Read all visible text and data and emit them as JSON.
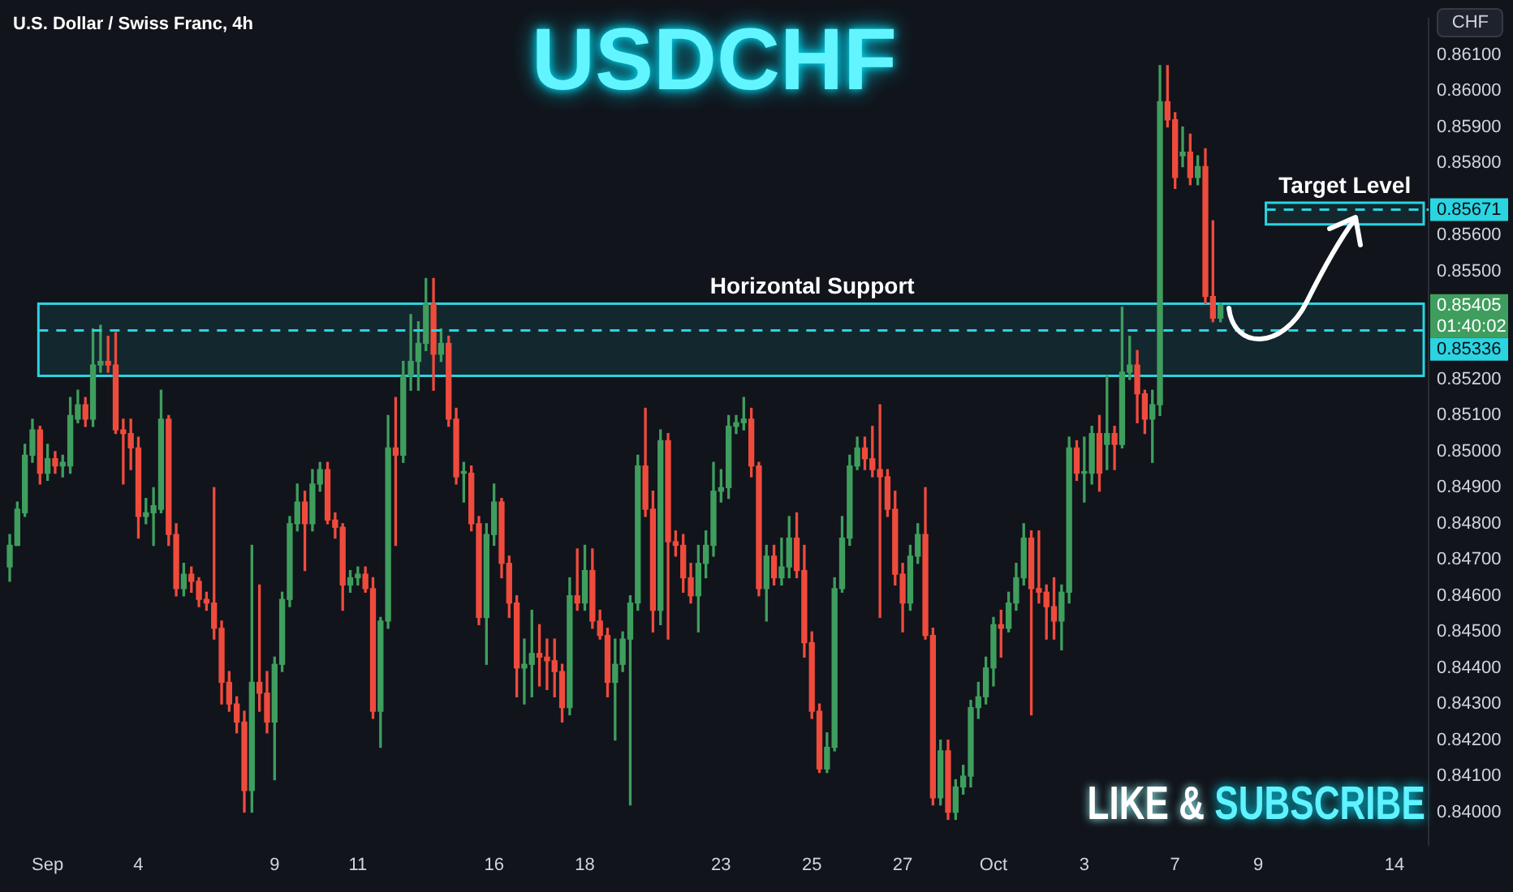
{
  "chart_data": {
    "type": "candlestick",
    "title": "USDCHF",
    "subtitle": "U.S. Dollar / Swiss Franc, 4h",
    "categories": [
      null,
      null,
      null,
      null,
      null,
      "Sep",
      null,
      null,
      null,
      null,
      null,
      null,
      null,
      null,
      null,
      null,
      null,
      "4",
      null,
      null,
      null,
      null,
      null,
      null,
      null,
      null,
      null,
      null,
      null,
      null,
      null,
      null,
      null,
      null,
      null,
      "9",
      null,
      null,
      null,
      null,
      null,
      null,
      null,
      null,
      null,
      null,
      "11",
      null,
      null,
      null,
      null,
      null,
      null,
      null,
      null,
      null,
      null,
      null,
      null,
      null,
      null,
      null,
      null,
      null,
      "16",
      null,
      null,
      null,
      null,
      null,
      null,
      null,
      null,
      null,
      null,
      null,
      "18",
      null,
      null,
      null,
      null,
      null,
      null,
      null,
      null,
      null,
      null,
      null,
      null,
      null,
      null,
      null,
      null,
      null,
      "23",
      null,
      null,
      null,
      null,
      null,
      null,
      null,
      null,
      null,
      null,
      null,
      "25",
      null,
      null,
      null,
      null,
      null,
      null,
      null,
      null,
      null,
      null,
      null,
      "27",
      null,
      null,
      null,
      null,
      null,
      null,
      null,
      null,
      null,
      null,
      null,
      "Oct",
      null,
      null,
      null,
      null,
      null,
      null,
      null,
      null,
      null,
      null,
      null,
      "3",
      null,
      null,
      null,
      null,
      null,
      null,
      null,
      null,
      null,
      null,
      null,
      "7",
      null,
      null,
      null,
      null,
      null,
      null,
      null,
      null,
      null,
      null,
      "9",
      null,
      null,
      null,
      null,
      null,
      null,
      null,
      null,
      null,
      null,
      null,
      null,
      null,
      null,
      null,
      null,
      null,
      "14",
      null,
      null,
      null,
      null
    ],
    "ohlc": [
      [
        0.8468,
        0.8477,
        0.8464,
        0.8474
      ],
      [
        0.8474,
        0.8486,
        0.8474,
        0.8484
      ],
      [
        0.8483,
        0.8502,
        0.8482,
        0.8499
      ],
      [
        0.8499,
        0.8509,
        0.8497,
        0.8506
      ],
      [
        0.8506,
        0.8507,
        0.8491,
        0.8494
      ],
      [
        0.8494,
        0.8502,
        0.8492,
        0.8498
      ],
      [
        0.8498,
        0.85,
        0.8494,
        0.8496
      ],
      [
        0.8496,
        0.8499,
        0.8493,
        0.8497
      ],
      [
        0.8496,
        0.8515,
        0.8494,
        0.851
      ],
      [
        0.8509,
        0.8517,
        0.8508,
        0.8513
      ],
      [
        0.8513,
        0.8515,
        0.8507,
        0.8509
      ],
      [
        0.8509,
        0.8534,
        0.8507,
        0.8524
      ],
      [
        0.8524,
        0.8535,
        0.8522,
        0.8525
      ],
      [
        0.8525,
        0.8532,
        0.8522,
        0.8524
      ],
      [
        0.8524,
        0.8533,
        0.8505,
        0.8506
      ],
      [
        0.8506,
        0.8509,
        0.8491,
        0.8505
      ],
      [
        0.8505,
        0.8509,
        0.8495,
        0.8501
      ],
      [
        0.8501,
        0.8504,
        0.8476,
        0.8482
      ],
      [
        0.8482,
        0.8487,
        0.848,
        0.8483
      ],
      [
        0.8483,
        0.849,
        0.8474,
        0.8485
      ],
      [
        0.8484,
        0.8517,
        0.8483,
        0.8509
      ],
      [
        0.8509,
        0.851,
        0.8474,
        0.8477
      ],
      [
        0.8477,
        0.848,
        0.846,
        0.8462
      ],
      [
        0.8462,
        0.8469,
        0.846,
        0.8466
      ],
      [
        0.8466,
        0.8468,
        0.8461,
        0.8464
      ],
      [
        0.8464,
        0.8465,
        0.8457,
        0.8459
      ],
      [
        0.8459,
        0.8461,
        0.8456,
        0.8458
      ],
      [
        0.8458,
        0.849,
        0.8448,
        0.8451
      ],
      [
        0.8451,
        0.8453,
        0.843,
        0.8436
      ],
      [
        0.8436,
        0.8439,
        0.8428,
        0.843
      ],
      [
        0.843,
        0.8432,
        0.8422,
        0.8425
      ],
      [
        0.8425,
        0.8428,
        0.84,
        0.8406
      ],
      [
        0.8406,
        0.8474,
        0.84,
        0.8436
      ],
      [
        0.8436,
        0.8463,
        0.8428,
        0.8433
      ],
      [
        0.8433,
        0.8439,
        0.8422,
        0.8425
      ],
      [
        0.8425,
        0.8443,
        0.8409,
        0.8441
      ],
      [
        0.8441,
        0.8461,
        0.8439,
        0.8459
      ],
      [
        0.8459,
        0.8482,
        0.8457,
        0.848
      ],
      [
        0.848,
        0.8491,
        0.8478,
        0.8486
      ],
      [
        0.8486,
        0.8489,
        0.8467,
        0.848
      ],
      [
        0.848,
        0.8495,
        0.8478,
        0.8491
      ],
      [
        0.8491,
        0.8497,
        0.8489,
        0.8495
      ],
      [
        0.8495,
        0.8497,
        0.848,
        0.8481
      ],
      [
        0.8481,
        0.8483,
        0.8476,
        0.8479
      ],
      [
        0.8479,
        0.848,
        0.8456,
        0.8463
      ],
      [
        0.8463,
        0.8467,
        0.8461,
        0.8465
      ],
      [
        0.8465,
        0.8468,
        0.8463,
        0.8466
      ],
      [
        0.8466,
        0.8468,
        0.8461,
        0.8462
      ],
      [
        0.8462,
        0.8465,
        0.8426,
        0.8428
      ],
      [
        0.8428,
        0.8454,
        0.8418,
        0.8453
      ],
      [
        0.8453,
        0.851,
        0.8451,
        0.8501
      ],
      [
        0.8501,
        0.8515,
        0.8474,
        0.8499
      ],
      [
        0.8499,
        0.8525,
        0.8497,
        0.8521
      ],
      [
        0.8521,
        0.8538,
        0.8517,
        0.8525
      ],
      [
        0.8525,
        0.8536,
        0.8517,
        0.853
      ],
      [
        0.853,
        0.8548,
        0.8528,
        0.8541
      ],
      [
        0.8541,
        0.8548,
        0.8517,
        0.8527
      ],
      [
        0.8527,
        0.8534,
        0.8525,
        0.853
      ],
      [
        0.853,
        0.8532,
        0.8507,
        0.8509
      ],
      [
        0.8509,
        0.8512,
        0.8491,
        0.8493
      ],
      [
        0.8494,
        0.8497,
        0.8486,
        0.8494
      ],
      [
        0.8494,
        0.8496,
        0.8478,
        0.848
      ],
      [
        0.848,
        0.8482,
        0.8452,
        0.8454
      ],
      [
        0.8454,
        0.848,
        0.8441,
        0.8477
      ],
      [
        0.8477,
        0.8491,
        0.8474,
        0.8486
      ],
      [
        0.8486,
        0.8487,
        0.8465,
        0.8469
      ],
      [
        0.8469,
        0.8471,
        0.8454,
        0.8458
      ],
      [
        0.8458,
        0.846,
        0.8432,
        0.844
      ],
      [
        0.844,
        0.8448,
        0.843,
        0.8441
      ],
      [
        0.8441,
        0.8456,
        0.8432,
        0.8444
      ],
      [
        0.8444,
        0.8452,
        0.8435,
        0.8443
      ],
      [
        0.8443,
        0.8448,
        0.8434,
        0.8442
      ],
      [
        0.8442,
        0.8448,
        0.8432,
        0.8439
      ],
      [
        0.8439,
        0.8441,
        0.8425,
        0.8429
      ],
      [
        0.8429,
        0.8465,
        0.8427,
        0.846
      ],
      [
        0.846,
        0.8473,
        0.8456,
        0.8458
      ],
      [
        0.8458,
        0.8474,
        0.8456,
        0.8467
      ],
      [
        0.8467,
        0.8473,
        0.8451,
        0.8453
      ],
      [
        0.8453,
        0.8456,
        0.8448,
        0.8449
      ],
      [
        0.8449,
        0.8451,
        0.8432,
        0.8436
      ],
      [
        0.8436,
        0.8448,
        0.842,
        0.8441
      ],
      [
        0.8441,
        0.845,
        0.8439,
        0.8448
      ],
      [
        0.8448,
        0.846,
        0.8402,
        0.8458
      ],
      [
        0.8458,
        0.8499,
        0.8456,
        0.8496
      ],
      [
        0.8496,
        0.8512,
        0.8482,
        0.8484
      ],
      [
        0.8484,
        0.8489,
        0.845,
        0.8456
      ],
      [
        0.8456,
        0.8506,
        0.8452,
        0.8503
      ],
      [
        0.8503,
        0.8505,
        0.8448,
        0.8475
      ],
      [
        0.8475,
        0.8478,
        0.8471,
        0.8474
      ],
      [
        0.8474,
        0.8477,
        0.8461,
        0.8465
      ],
      [
        0.8465,
        0.8469,
        0.8458,
        0.846
      ],
      [
        0.846,
        0.8474,
        0.845,
        0.8469
      ],
      [
        0.8469,
        0.8478,
        0.8465,
        0.8474
      ],
      [
        0.8474,
        0.8497,
        0.8471,
        0.8489
      ],
      [
        0.8489,
        0.8495,
        0.8486,
        0.849
      ],
      [
        0.849,
        0.851,
        0.8487,
        0.8507
      ],
      [
        0.8507,
        0.851,
        0.8505,
        0.8508
      ],
      [
        0.8508,
        0.8515,
        0.8506,
        0.8509
      ],
      [
        0.8509,
        0.8512,
        0.8493,
        0.8496
      ],
      [
        0.8496,
        0.8497,
        0.846,
        0.8462
      ],
      [
        0.8462,
        0.8474,
        0.8453,
        0.8471
      ],
      [
        0.8471,
        0.8474,
        0.8463,
        0.8465
      ],
      [
        0.8465,
        0.8476,
        0.8463,
        0.8468
      ],
      [
        0.8468,
        0.8482,
        0.8465,
        0.8476
      ],
      [
        0.8476,
        0.8483,
        0.8465,
        0.8467
      ],
      [
        0.8467,
        0.8474,
        0.8443,
        0.8447
      ],
      [
        0.8447,
        0.845,
        0.8426,
        0.8428
      ],
      [
        0.8428,
        0.843,
        0.8411,
        0.8412
      ],
      [
        0.8412,
        0.8422,
        0.8411,
        0.8418
      ],
      [
        0.8418,
        0.8465,
        0.8417,
        0.8462
      ],
      [
        0.8462,
        0.8482,
        0.8461,
        0.8476
      ],
      [
        0.8476,
        0.8499,
        0.8474,
        0.8496
      ],
      [
        0.8496,
        0.8504,
        0.8495,
        0.8501
      ],
      [
        0.8501,
        0.8504,
        0.8495,
        0.8498
      ],
      [
        0.8498,
        0.8507,
        0.8493,
        0.8495
      ],
      [
        0.8495,
        0.8513,
        0.8454,
        0.8493
      ],
      [
        0.8493,
        0.8495,
        0.8482,
        0.8484
      ],
      [
        0.8484,
        0.8489,
        0.8463,
        0.8466
      ],
      [
        0.8466,
        0.8469,
        0.845,
        0.8458
      ],
      [
        0.8458,
        0.8474,
        0.8456,
        0.8471
      ],
      [
        0.8471,
        0.848,
        0.8469,
        0.8477
      ],
      [
        0.8477,
        0.849,
        0.8448,
        0.8449
      ],
      [
        0.8449,
        0.8451,
        0.8402,
        0.8404
      ],
      [
        0.8404,
        0.842,
        0.8402,
        0.8417
      ],
      [
        0.8417,
        0.842,
        0.8398,
        0.84
      ],
      [
        0.84,
        0.8409,
        0.8398,
        0.8407
      ],
      [
        0.8407,
        0.8413,
        0.8405,
        0.841
      ],
      [
        0.841,
        0.8431,
        0.8407,
        0.8429
      ],
      [
        0.8429,
        0.8436,
        0.8426,
        0.8432
      ],
      [
        0.8432,
        0.8443,
        0.843,
        0.844
      ],
      [
        0.844,
        0.8454,
        0.8435,
        0.8452
      ],
      [
        0.8452,
        0.8456,
        0.8443,
        0.8451
      ],
      [
        0.8451,
        0.8461,
        0.845,
        0.8458
      ],
      [
        0.8458,
        0.8469,
        0.8456,
        0.8465
      ],
      [
        0.8465,
        0.848,
        0.8463,
        0.8476
      ],
      [
        0.8476,
        0.8478,
        0.8427,
        0.8462
      ],
      [
        0.8462,
        0.8478,
        0.8458,
        0.8461
      ],
      [
        0.8461,
        0.8463,
        0.8448,
        0.8457
      ],
      [
        0.8457,
        0.8465,
        0.8448,
        0.8453
      ],
      [
        0.8453,
        0.8463,
        0.8445,
        0.8461
      ],
      [
        0.8461,
        0.8504,
        0.8458,
        0.8501
      ],
      [
        0.8501,
        0.8503,
        0.8492,
        0.8494
      ],
      [
        0.8494,
        0.8504,
        0.8486,
        0.8494
      ],
      [
        0.8494,
        0.8507,
        0.8491,
        0.8505
      ],
      [
        0.8505,
        0.851,
        0.8489,
        0.8494
      ],
      [
        0.8502,
        0.8521,
        0.8495,
        0.8505
      ],
      [
        0.8505,
        0.8507,
        0.8495,
        0.8502
      ],
      [
        0.8502,
        0.854,
        0.8501,
        0.8522
      ],
      [
        0.8522,
        0.8532,
        0.852,
        0.8524
      ],
      [
        0.8524,
        0.8528,
        0.8508,
        0.8516
      ],
      [
        0.8516,
        0.8517,
        0.8505,
        0.8509
      ],
      [
        0.8509,
        0.8517,
        0.8497,
        0.8513
      ],
      [
        0.8513,
        0.8607,
        0.851,
        0.8597
      ],
      [
        0.8597,
        0.8607,
        0.859,
        0.8592
      ],
      [
        0.8592,
        0.8594,
        0.8573,
        0.8576
      ],
      [
        0.8582,
        0.859,
        0.8579,
        0.8583
      ],
      [
        0.8583,
        0.8588,
        0.8574,
        0.8576
      ],
      [
        0.8576,
        0.8582,
        0.8574,
        0.8579
      ],
      [
        0.8579,
        0.8584,
        0.8541,
        0.8543
      ],
      [
        0.8543,
        0.8564,
        0.8536,
        0.8537
      ],
      [
        0.8537,
        0.8541,
        0.8536,
        0.85405
      ],
      null,
      null,
      null,
      null,
      null,
      null,
      null,
      null,
      null,
      null,
      null,
      null,
      null,
      null,
      null,
      null,
      null,
      null,
      null,
      null,
      null,
      null,
      null,
      null,
      null,
      null,
      null
    ],
    "colors": [
      "#3f9e5e",
      "#3f9e5e",
      "#3f9e5e",
      "#3f9e5e",
      "#ef4b3d",
      "#3f9e5e",
      "#ef4b3d",
      "#3f9e5e",
      "#3f9e5e",
      "#3f9e5e",
      "#ef4b3d",
      "#3f9e5e",
      "#3f9e5e",
      "#ef4b3d",
      "#ef4b3d",
      "#ef4b3d",
      "#ef4b3d",
      "#ef4b3d",
      "#3f9e5e",
      "#3f9e5e",
      "#3f9e5e",
      "#ef4b3d",
      "#ef4b3d",
      "#3f9e5e",
      "#ef4b3d",
      "#ef4b3d",
      "#ef4b3d",
      "#ef4b3d",
      "#ef4b3d",
      "#ef4b3d",
      "#ef4b3d",
      "#ef4b3d",
      "#3f9e5e",
      "#ef4b3d",
      "#ef4b3d",
      "#3f9e5e",
      "#3f9e5e",
      "#3f9e5e",
      "#3f9e5e",
      "#ef4b3d",
      "#3f9e5e",
      "#3f9e5e",
      "#ef4b3d",
      "#ef4b3d",
      "#ef4b3d",
      "#3f9e5e",
      "#3f9e5e",
      "#ef4b3d",
      "#ef4b3d",
      "#3f9e5e",
      "#3f9e5e",
      "#ef4b3d",
      "#3f9e5e",
      "#3f9e5e",
      "#3f9e5e",
      "#3f9e5e",
      "#ef4b3d",
      "#3f9e5e",
      "#ef4b3d",
      "#ef4b3d",
      "#3f9e5e",
      "#ef4b3d",
      "#ef4b3d",
      "#3f9e5e",
      "#3f9e5e",
      "#ef4b3d",
      "#ef4b3d",
      "#ef4b3d",
      "#3f9e5e",
      "#3f9e5e",
      "#ef4b3d",
      "#ef4b3d",
      "#ef4b3d",
      "#ef4b3d",
      "#3f9e5e",
      "#ef4b3d",
      "#3f9e5e",
      "#ef4b3d",
      "#ef4b3d",
      "#ef4b3d",
      "#3f9e5e",
      "#3f9e5e",
      "#3f9e5e",
      "#3f9e5e",
      "#ef4b3d",
      "#ef4b3d",
      "#3f9e5e",
      "#ef4b3d",
      "#ef4b3d",
      "#ef4b3d",
      "#ef4b3d",
      "#3f9e5e",
      "#3f9e5e",
      "#3f9e5e",
      "#3f9e5e",
      "#3f9e5e",
      "#3f9e5e",
      "#3f9e5e",
      "#ef4b3d",
      "#ef4b3d",
      "#3f9e5e",
      "#ef4b3d",
      "#3f9e5e",
      "#3f9e5e",
      "#ef4b3d",
      "#ef4b3d",
      "#ef4b3d",
      "#ef4b3d",
      "#3f9e5e",
      "#3f9e5e",
      "#3f9e5e",
      "#3f9e5e",
      "#3f9e5e",
      "#ef4b3d",
      "#ef4b3d",
      "#ef4b3d",
      "#ef4b3d",
      "#ef4b3d",
      "#ef4b3d",
      "#3f9e5e",
      "#3f9e5e",
      "#ef4b3d",
      "#ef4b3d",
      "#3f9e5e",
      "#ef4b3d",
      "#3f9e5e",
      "#3f9e5e",
      "#3f9e5e",
      "#3f9e5e",
      "#3f9e5e",
      "#3f9e5e",
      "#ef4b3d",
      "#3f9e5e",
      "#3f9e5e",
      "#3f9e5e",
      "#ef4b3d",
      "#ef4b3d",
      "#ef4b3d",
      "#ef4b3d",
      "#3f9e5e",
      "#3f9e5e",
      "#ef4b3d",
      "#3f9e5e",
      "#3f9e5e",
      "#ef4b3d",
      "#3f9e5e",
      "#ef4b3d",
      "#3f9e5e",
      "#3f9e5e",
      "#ef4b3d",
      "#ef4b3d",
      "#3f9e5e",
      "#3f9e5e",
      "#ef4b3d",
      "#ef4b3d",
      "#3f9e5e",
      "#ef4b3d",
      "#3f9e5e",
      "#ef4b3d",
      "#ef4b3d",
      "#3f9e5e",
      null,
      null,
      null,
      null,
      null,
      null,
      null,
      null,
      null,
      null,
      null,
      null,
      null,
      null,
      null,
      null,
      null,
      null,
      null,
      null,
      null,
      null,
      null,
      null,
      null,
      null,
      null
    ],
    "ylim": [
      0.8391,
      0.862
    ],
    "yticks": [
      {
        "value": 0.84,
        "label": "0.84000"
      },
      {
        "value": 0.841,
        "label": "0.84100"
      },
      {
        "value": 0.842,
        "label": "0.84200"
      },
      {
        "value": 0.843,
        "label": "0.84300"
      },
      {
        "value": 0.844,
        "label": "0.84400"
      },
      {
        "value": 0.845,
        "label": "0.84500"
      },
      {
        "value": 0.846,
        "label": "0.84600"
      },
      {
        "value": 0.847,
        "label": "0.84700"
      },
      {
        "value": 0.848,
        "label": "0.84800"
      },
      {
        "value": 0.849,
        "label": "0.84900"
      },
      {
        "value": 0.85,
        "label": "0.85000"
      },
      {
        "value": 0.851,
        "label": "0.85100"
      },
      {
        "value": 0.852,
        "label": "0.85200"
      },
      {
        "value": 0.855,
        "label": "0.85500"
      },
      {
        "value": 0.856,
        "label": "0.85600"
      },
      {
        "value": 0.858,
        "label": "0.85800"
      },
      {
        "value": 0.859,
        "label": "0.85900"
      },
      {
        "value": 0.86,
        "label": "0.86000"
      },
      {
        "value": 0.861,
        "label": "0.86100"
      }
    ],
    "bands": [
      {
        "axis": "y",
        "from": 0.8521,
        "to": 0.8541,
        "label": "Horizontal Support",
        "color": "#2ad4e0"
      },
      {
        "axis": "y",
        "from": 0.8563,
        "to": 0.8569,
        "label": "Target Level",
        "color": "#2ad4e0"
      }
    ],
    "ref_lines": [
      {
        "axis": "y",
        "value": 0.85671,
        "label": "0.85671",
        "color": "#2ad4e0",
        "line_style": "dashed"
      },
      {
        "axis": "y",
        "value": 0.85336,
        "label": "0.85336",
        "color": "#2ad4e0",
        "line_style": "dashed"
      }
    ],
    "annotations": [
      "CHF",
      "0.85405",
      "01:40:02",
      "LIKE & SUBSCRIBE"
    ]
  }
}
